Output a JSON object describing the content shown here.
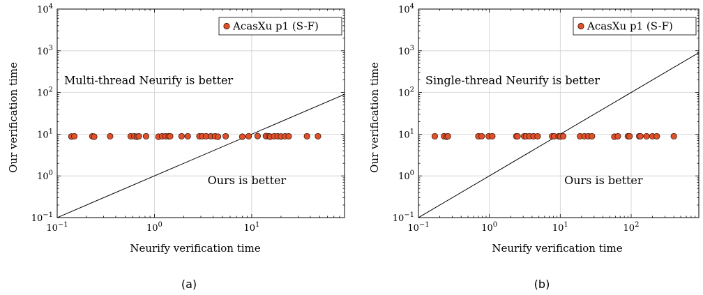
{
  "chart_data": [
    {
      "type": "scatter",
      "panel": "a",
      "caption": "(a)",
      "xlabel": "Neurify verification time",
      "ylabel": "Our verification time",
      "xscale": "log",
      "yscale": "log",
      "xlim": [
        0.1,
        90
      ],
      "ylim": [
        0.1,
        10000
      ],
      "x_ticks": [
        0.1,
        1,
        10
      ],
      "x_tick_labels": [
        "10^-1",
        "10^0",
        "10^1"
      ],
      "y_ticks": [
        0.1,
        1,
        10,
        100,
        1000,
        10000
      ],
      "y_tick_labels": [
        "10^-1",
        "10^0",
        "10^1",
        "10^2",
        "10^3",
        "10^4"
      ],
      "grid": true,
      "legend": {
        "placement": "top-right",
        "entries": [
          "AcasXu p1 (S-F)"
        ]
      },
      "diagonal": "y = x",
      "annotations": [
        {
          "text": "Multi-thread Neurify is better",
          "region": "upper-left"
        },
        {
          "text": "Ours is better",
          "region": "lower-right"
        }
      ],
      "series": [
        {
          "name": "AcasXu p1 (S-F)",
          "color": "#e0502a",
          "points": [
            [
              0.14,
              8.8
            ],
            [
              0.15,
              8.9
            ],
            [
              0.23,
              8.9
            ],
            [
              0.24,
              8.7
            ],
            [
              0.35,
              8.9
            ],
            [
              0.57,
              8.9
            ],
            [
              0.62,
              8.9
            ],
            [
              0.66,
              8.7
            ],
            [
              0.69,
              8.9
            ],
            [
              0.82,
              8.9
            ],
            [
              1.1,
              8.7
            ],
            [
              1.2,
              8.9
            ],
            [
              1.3,
              8.9
            ],
            [
              1.4,
              8.9
            ],
            [
              1.45,
              8.9
            ],
            [
              1.9,
              8.9
            ],
            [
              2.2,
              8.9
            ],
            [
              2.9,
              8.9
            ],
            [
              3.1,
              8.9
            ],
            [
              3.4,
              8.9
            ],
            [
              3.8,
              8.9
            ],
            [
              4.2,
              8.9
            ],
            [
              4.5,
              8.7
            ],
            [
              5.4,
              8.9
            ],
            [
              8.0,
              8.7
            ],
            [
              9.3,
              8.9
            ],
            [
              11.5,
              9.0
            ],
            [
              14.0,
              9.0
            ],
            [
              15.0,
              8.9
            ],
            [
              15.5,
              8.7
            ],
            [
              17.0,
              8.9
            ],
            [
              18.5,
              8.9
            ],
            [
              20.0,
              8.8
            ],
            [
              22.0,
              8.9
            ],
            [
              24.0,
              8.9
            ],
            [
              37.0,
              8.9
            ],
            [
              48.0,
              8.9
            ]
          ]
        }
      ]
    },
    {
      "type": "scatter",
      "panel": "b",
      "caption": "(b)",
      "xlabel": "Neurify verification time",
      "ylabel": "Our verification time",
      "xscale": "log",
      "yscale": "log",
      "xlim": [
        0.1,
        900
      ],
      "ylim": [
        0.1,
        10000
      ],
      "x_ticks": [
        0.1,
        1,
        10,
        100
      ],
      "x_tick_labels": [
        "10^-1",
        "10^0",
        "10^1",
        "10^2"
      ],
      "y_ticks": [
        0.1,
        1,
        10,
        100,
        1000,
        10000
      ],
      "y_tick_labels": [
        "10^-1",
        "10^0",
        "10^1",
        "10^2",
        "10^3",
        "10^4"
      ],
      "grid": true,
      "legend": {
        "placement": "top-right",
        "entries": [
          "AcasXu p1 (S-F)"
        ]
      },
      "diagonal": "y = x",
      "annotations": [
        {
          "text": "Single-thread Neurify is better",
          "region": "upper-left"
        },
        {
          "text": "Ours is better",
          "region": "lower-right"
        }
      ],
      "series": [
        {
          "name": "AcasXu p1 (S-F)",
          "color": "#e0502a",
          "points": [
            [
              0.17,
              8.9
            ],
            [
              0.23,
              8.9
            ],
            [
              0.25,
              8.7
            ],
            [
              0.26,
              8.9
            ],
            [
              0.7,
              8.9
            ],
            [
              0.78,
              8.9
            ],
            [
              0.98,
              8.9
            ],
            [
              1.1,
              8.9
            ],
            [
              2.4,
              8.9
            ],
            [
              2.5,
              8.9
            ],
            [
              3.1,
              8.9
            ],
            [
              3.3,
              8.9
            ],
            [
              3.7,
              8.9
            ],
            [
              4.2,
              8.9
            ],
            [
              4.8,
              8.9
            ],
            [
              7.7,
              8.9
            ],
            [
              8.2,
              8.9
            ],
            [
              9.5,
              8.9
            ],
            [
              10.0,
              8.8
            ],
            [
              11.0,
              8.9
            ],
            [
              19.0,
              8.9
            ],
            [
              22.0,
              8.9
            ],
            [
              25.0,
              8.9
            ],
            [
              28.0,
              8.9
            ],
            [
              58.0,
              8.7
            ],
            [
              65.0,
              8.9
            ],
            [
              90.0,
              8.9
            ],
            [
              95.0,
              8.9
            ],
            [
              130.0,
              8.9
            ],
            [
              135.0,
              8.9
            ],
            [
              165.0,
              8.9
            ],
            [
              200.0,
              8.9
            ],
            [
              230.0,
              8.9
            ],
            [
              400.0,
              8.9
            ]
          ]
        }
      ]
    }
  ]
}
